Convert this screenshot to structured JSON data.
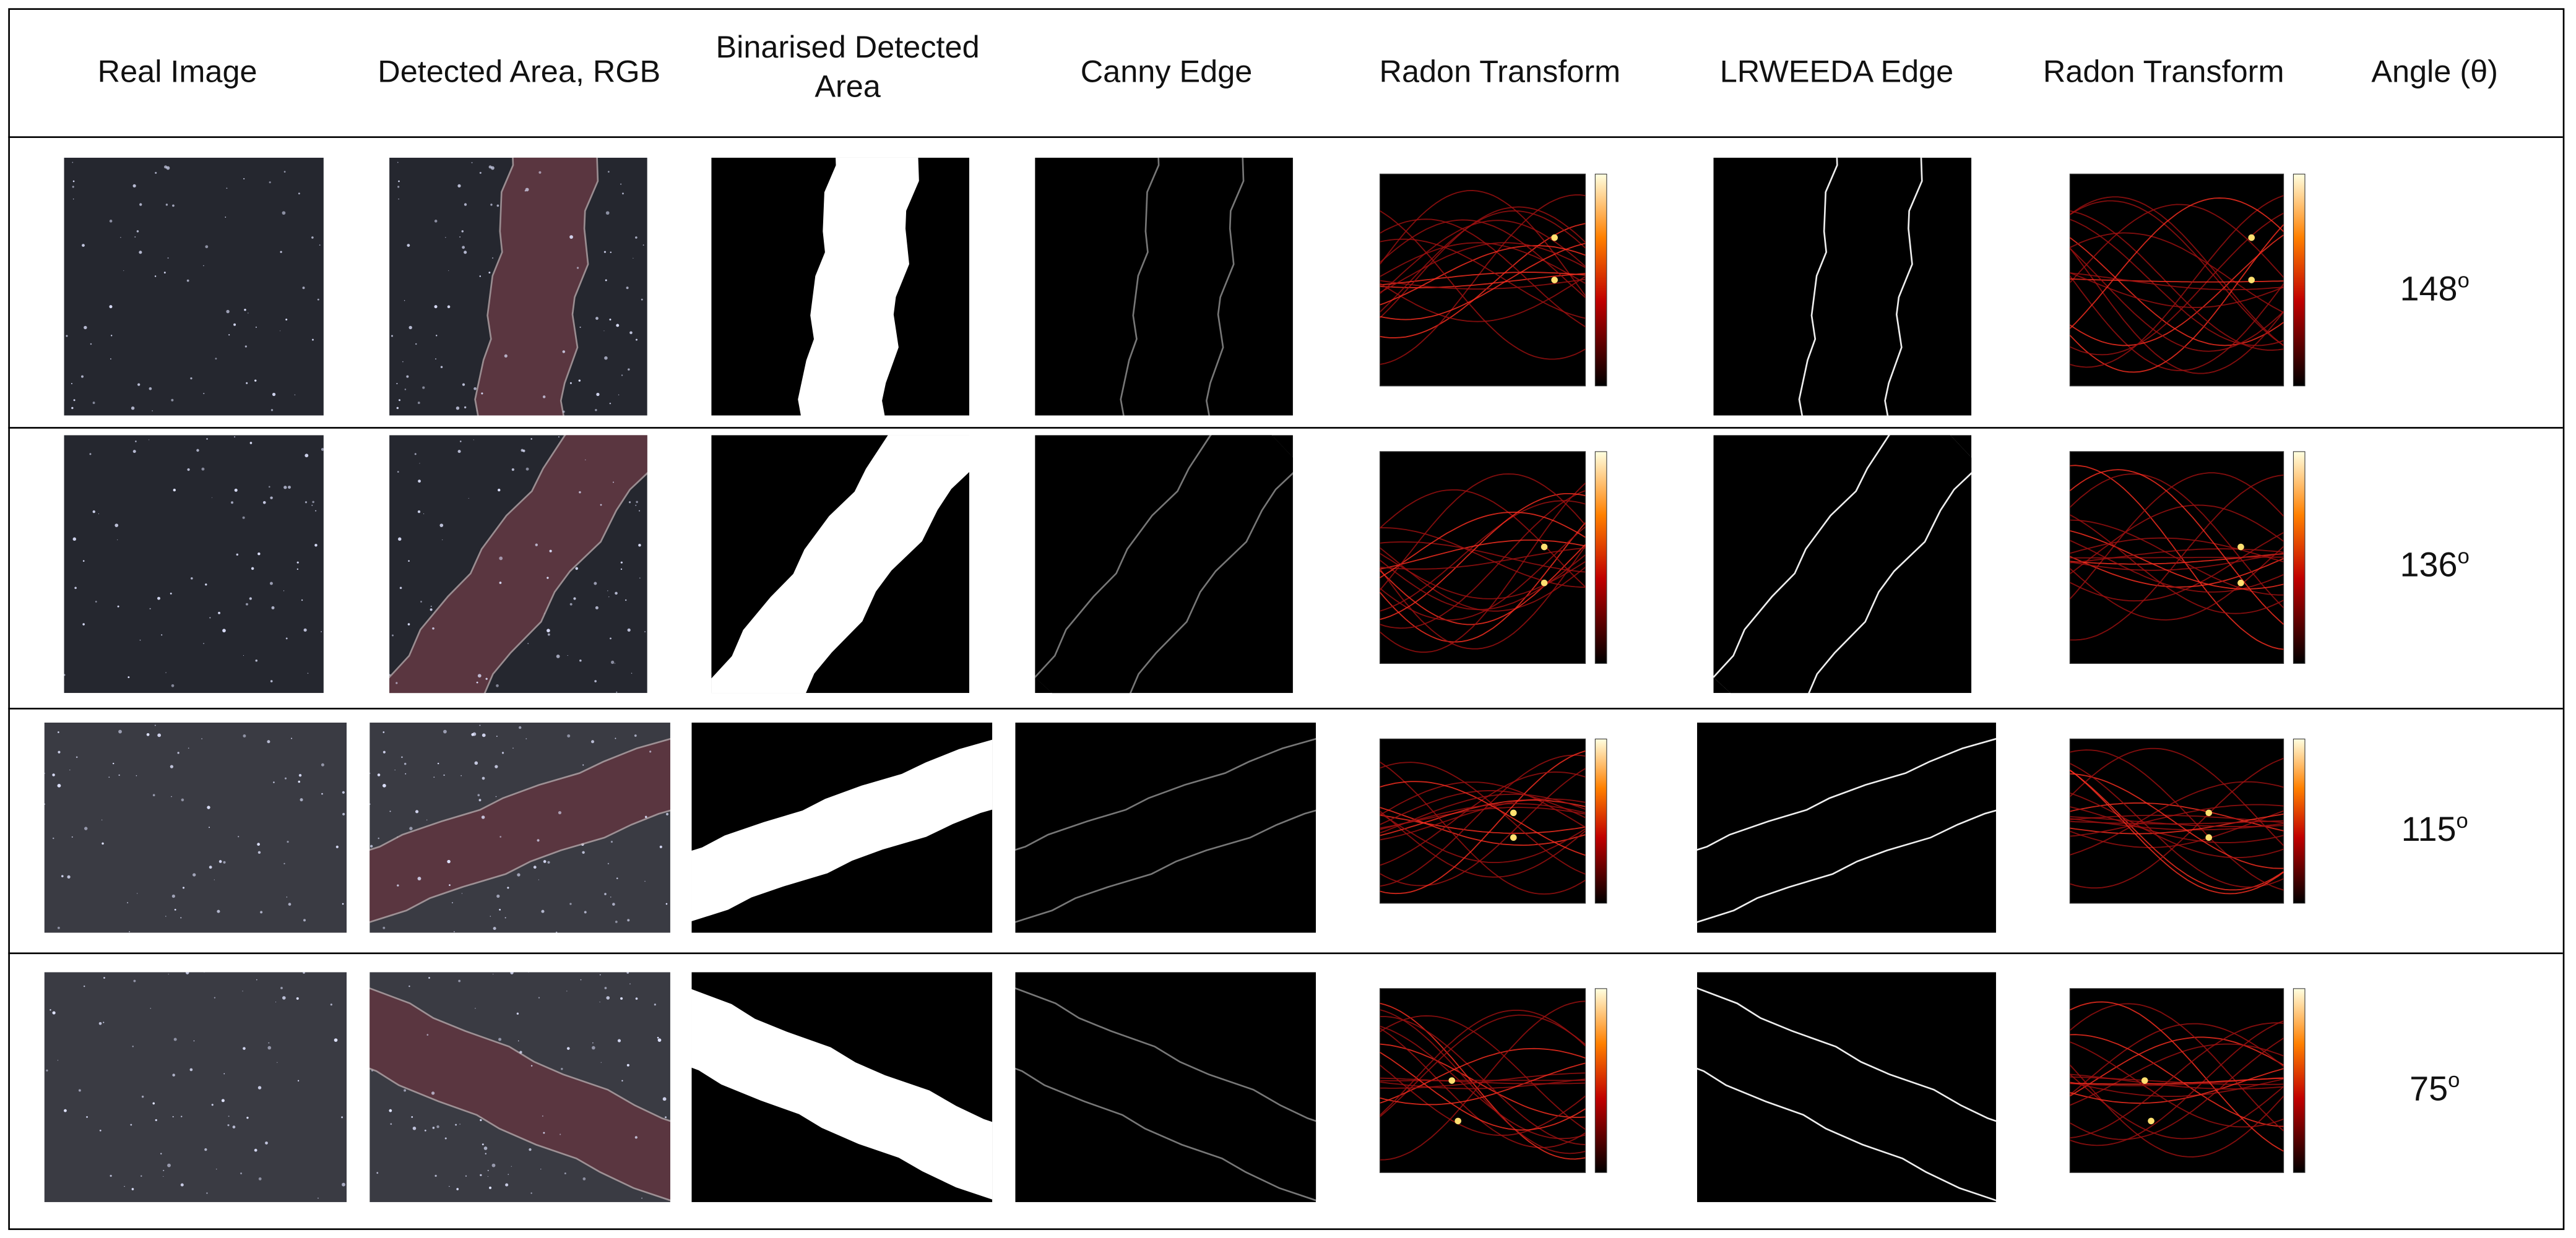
{
  "header": [
    "Real Image",
    "Detected Area, RGB",
    "Binarised Detected Area",
    "Canny Edge",
    "Radon Transform",
    "LRWEEDA Edge",
    "Radon Transform",
    "Angle (θ)"
  ],
  "rows": [
    {
      "angle": "148",
      "angle_unit": "o"
    },
    {
      "angle": "136",
      "angle_unit": "o"
    },
    {
      "angle": "115",
      "angle_unit": "o"
    },
    {
      "angle": "75",
      "angle_unit": "o"
    }
  ]
}
